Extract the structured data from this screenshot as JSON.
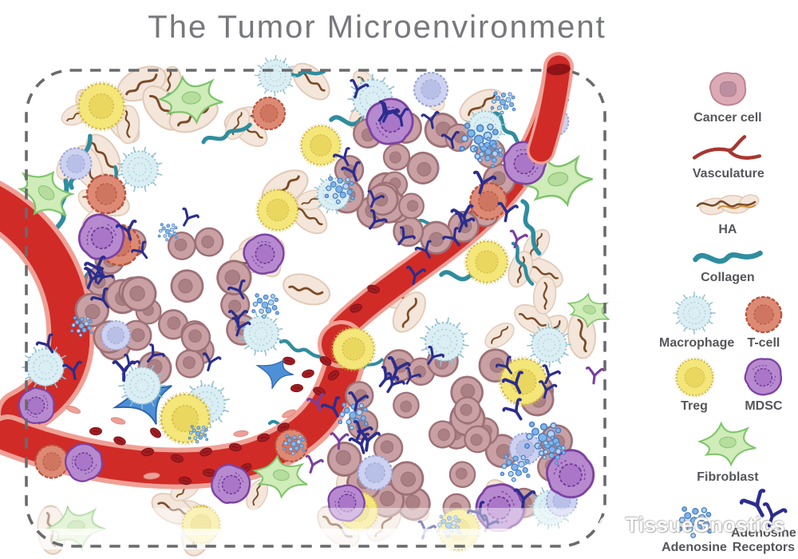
{
  "title": "The Tumor Microenvironment",
  "watermark": {
    "text": "TissueGnostics"
  },
  "legend": {
    "items": [
      {
        "id": "cancer-cell",
        "label": "Cancer cell",
        "span": "full",
        "icon": "cancer-cell-icon"
      },
      {
        "id": "vasculature",
        "label": "Vasculature",
        "span": "full",
        "icon": "vasculature-icon"
      },
      {
        "id": "ha",
        "label": "HA",
        "span": "full",
        "icon": "ha-icon"
      },
      {
        "id": "collagen",
        "label": "Collagen",
        "span": "full",
        "icon": "collagen-icon"
      },
      {
        "id": "macrophage",
        "label": "Macrophage",
        "span": "half",
        "icon": "macrophage-icon"
      },
      {
        "id": "t-cell",
        "label": "T-cell",
        "span": "half",
        "icon": "t-cell-icon"
      },
      {
        "id": "treg",
        "label": "Treg",
        "span": "half",
        "icon": "treg-icon"
      },
      {
        "id": "mdsc",
        "label": "MDSC",
        "span": "half",
        "icon": "mdsc-icon"
      },
      {
        "id": "fibroblast",
        "label": "Fibroblast",
        "span": "full",
        "icon": "fibroblast-icon"
      },
      {
        "id": "adenosine",
        "label": "Adenosine",
        "span": "half",
        "icon": "adenosine-icon"
      },
      {
        "id": "adenosine-receptors",
        "label": "Adenosine Receptors",
        "span": "half",
        "icon": "receptors-icon"
      }
    ]
  },
  "colors": {
    "title_text": "#77787b",
    "label_text": "#55565a",
    "border_dash": "#696a6d",
    "accent_red": "#d02b27",
    "vessel_lining": "#efa096",
    "vessel_cap": "#8e1316",
    "rbc": "#a01d22",
    "rbc_dark": "#7a1114",
    "tumor_cell": "#c9a0a3",
    "tumor_cell_outline": "#9d7176",
    "tumor_cell_core": "#aa7f84",
    "stroma_ha_fill": "#f4e6da",
    "stroma_ha_stroke": "#e1cab8",
    "ha_strand": "#7b4b28",
    "ha_strand_orange": "#cc8f3e",
    "collagen": "#2e8d9e",
    "macrophage_fill": "#daeef3",
    "macrophage_stroke": "#8fc0cf",
    "lymphocyte_fill": "#ccd2f0",
    "lymphocyte_stroke": "#9aa3d8",
    "lymphocyte_core": "#b7bfe7",
    "tcell_fill": "#dd8a75",
    "tcell_stroke": "#b9543f",
    "tcell_core": "#cf7560",
    "treg_fill": "#f4e678",
    "treg_stroke": "#d3b94b",
    "treg_core": "#ead75e",
    "mdsc_fill": "#b78ad0",
    "mdsc_stroke": "#7d42a2",
    "mdsc_core": "#aa76c8",
    "mdsc_inner": "#6e3694",
    "fibroblast_fill": "#cfecb9",
    "fibroblast_stroke": "#7fc46c",
    "fibroblast_nucleus": "#b4dc9a",
    "adenosine_fill": "#7fb6e8",
    "adenosine_light": "#b5d6f2",
    "adenosine_stroke": "#4c7fc4",
    "receptor_navy": "#2b2d8e",
    "receptor_purple": "#7a3f9d",
    "pericyte": "#4e90d8",
    "pericyte_stroke": "#2f66ae",
    "cancer_legend_fill": "#dcaab4",
    "cancer_legend_stroke": "#ba8196",
    "cancer_legend_core": "#bb8fa0",
    "vasculature_line": "#a83630"
  }
}
